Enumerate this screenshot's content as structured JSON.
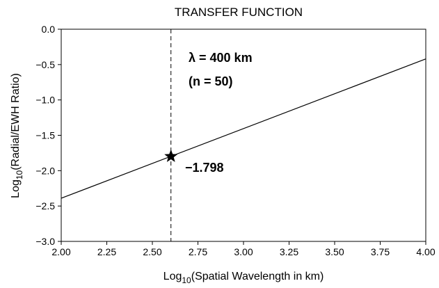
{
  "chart_data": {
    "type": "line",
    "title": "TRANSFER FUNCTION",
    "xlabel": {
      "prefix": "Log",
      "subscript": "10",
      "rest": "(Spatial Wavelength in km)"
    },
    "ylabel": {
      "prefix": "Log",
      "subscript": "10",
      "rest": "(Radial/EWH Ratio)"
    },
    "xlim": [
      2.0,
      4.0
    ],
    "ylim": [
      -3.0,
      0.0
    ],
    "xticks": [
      2.0,
      2.25,
      2.5,
      2.75,
      3.0,
      3.25,
      3.5,
      3.75,
      4.0
    ],
    "xtick_labels": [
      "2.00",
      "2.25",
      "2.50",
      "2.75",
      "3.00",
      "3.25",
      "3.50",
      "3.75",
      "4.00"
    ],
    "yticks": [
      0.0,
      -0.5,
      -1.0,
      -1.5,
      -2.0,
      -2.5,
      -3.0
    ],
    "ytick_labels": [
      "0.0",
      "−0.5",
      "−1.0",
      "−1.5",
      "−2.0",
      "−2.5",
      "−3.0"
    ],
    "grid": false,
    "series": [
      {
        "x": [
          2.0,
          4.0
        ],
        "y": [
          -2.39,
          -0.42
        ]
      }
    ],
    "vline_x": 2.602,
    "marker": {
      "x": 2.602,
      "y": -1.798,
      "shape": "star"
    },
    "annotations": {
      "lambda_line": "λ = 400 km",
      "n_line": "(n = 50)",
      "value": "−1.798"
    }
  }
}
